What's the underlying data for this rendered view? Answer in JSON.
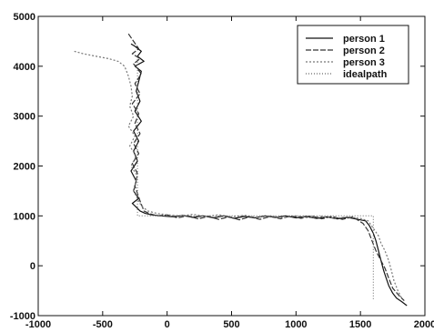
{
  "chart_data": {
    "type": "line",
    "title": "",
    "xlabel": "",
    "ylabel": "",
    "xlim": [
      -1000,
      2000
    ],
    "ylim": [
      -1000,
      5000
    ],
    "xticks": [
      -1000,
      -500,
      0,
      500,
      1000,
      1500,
      2000
    ],
    "yticks": [
      -1000,
      0,
      1000,
      2000,
      3000,
      4000,
      5000
    ],
    "xtick_labels": [
      "-1000",
      "-500",
      "0",
      "500",
      "1000",
      "1500",
      "2000"
    ],
    "ytick_labels": [
      "-1000",
      "0",
      "1000",
      "2000",
      "3000",
      "4000",
      "5000"
    ],
    "grid": false,
    "legend_position": "top-right",
    "series": [
      {
        "name": "person 1",
        "color": "#111111",
        "dash": "none",
        "x": [
          -280,
          -250,
          -200,
          -230,
          -180,
          -250,
          -200,
          -220,
          -240,
          -210,
          -250,
          -200,
          -260,
          -220,
          -260,
          -230,
          -280,
          -240,
          -260,
          -220,
          -270,
          -230,
          -210,
          -170,
          -120,
          -50,
          50,
          120,
          200,
          280,
          360,
          440,
          520,
          600,
          680,
          760,
          840,
          920,
          1000,
          1080,
          1160,
          1240,
          1320,
          1400,
          1480,
          1540,
          1570,
          1600,
          1620,
          1640,
          1660,
          1680,
          1700,
          1720,
          1750,
          1780,
          1820,
          1860
        ],
        "y": [
          4450,
          4400,
          4300,
          4200,
          4100,
          4000,
          3900,
          3700,
          3500,
          3300,
          3100,
          2900,
          2700,
          2500,
          2300,
          2100,
          1900,
          1700,
          1500,
          1350,
          1250,
          1150,
          1100,
          1050,
          1020,
          1000,
          980,
          1010,
          970,
          1000,
          960,
          1000,
          950,
          990,
          960,
          1000,
          970,
          1000,
          960,
          990,
          950,
          980,
          940,
          970,
          930,
          900,
          800,
          650,
          500,
          300,
          100,
          -100,
          -250,
          -400,
          -550,
          -650,
          -720,
          -800
        ]
      },
      {
        "name": "person 2",
        "color": "#333333",
        "dash": "6,2",
        "x": [
          -300,
          -260,
          -220,
          -270,
          -210,
          -260,
          -200,
          -250,
          -210,
          -270,
          -220,
          -250,
          -210,
          -260,
          -220,
          -270,
          -230,
          -250,
          -210,
          -180,
          -140,
          -80,
          0,
          80,
          160,
          240,
          320,
          400,
          480,
          560,
          640,
          720,
          800,
          880,
          960,
          1040,
          1120,
          1200,
          1280,
          1360,
          1440,
          1520,
          1560,
          1590,
          1620,
          1650,
          1690,
          1720,
          1750,
          1800,
          1840
        ],
        "y": [
          4650,
          4500,
          4350,
          4250,
          4150,
          4050,
          3850,
          3650,
          3450,
          3250,
          3050,
          2850,
          2650,
          2450,
          2250,
          2050,
          1850,
          1600,
          1300,
          1100,
          1050,
          1000,
          1020,
          960,
          1000,
          940,
          990,
          930,
          980,
          920,
          980,
          930,
          990,
          940,
          1000,
          950,
          1000,
          940,
          990,
          930,
          980,
          850,
          700,
          500,
          300,
          150,
          -50,
          -250,
          -450,
          -600,
          -700
        ]
      },
      {
        "name": "person 3",
        "color": "#777777",
        "dash": "2,2",
        "x": [
          -720,
          -650,
          -550,
          -450,
          -380,
          -330,
          -300,
          -280,
          -270,
          -290,
          -260,
          -300,
          -250,
          -290,
          -240,
          -280,
          -230,
          -260,
          -200,
          -150,
          -80,
          0,
          100,
          200,
          300,
          400,
          500,
          600,
          700,
          800,
          900,
          1000,
          1100,
          1200,
          1300,
          1400,
          1500,
          1560,
          1600,
          1640,
          1660,
          1690,
          1720,
          1740,
          1760,
          1790,
          1820
        ],
        "y": [
          4300,
          4250,
          4200,
          4150,
          4100,
          4000,
          3800,
          3600,
          3400,
          3200,
          3000,
          2800,
          2600,
          2400,
          2200,
          2000,
          1800,
          1500,
          1200,
          1100,
          1050,
          1020,
          1000,
          1030,
          990,
          1020,
          980,
          1010,
          970,
          1000,
          960,
          1000,
          960,
          990,
          950,
          980,
          950,
          900,
          750,
          600,
          450,
          300,
          100,
          -100,
          -300,
          -500,
          -650
        ]
      },
      {
        "name": "idealpath",
        "color": "#666666",
        "dash": "1,2",
        "x": [
          -230,
          -230,
          1600,
          1600
        ],
        "y": [
          4200,
          1000,
          1000,
          -700
        ]
      }
    ]
  }
}
